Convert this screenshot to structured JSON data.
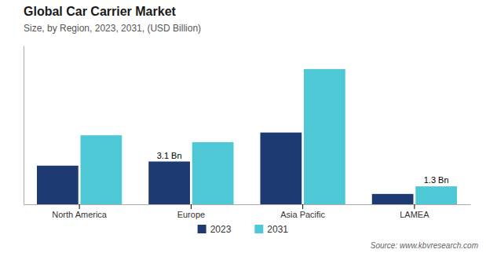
{
  "chart_data": {
    "type": "bar",
    "title": "Global Car Carrier Market",
    "subtitle": "Size, by Region, 2023, 2031, (USD Billion)",
    "categories": [
      "North America",
      "Europe",
      "Asia Pacific",
      "LAMEA"
    ],
    "series": [
      {
        "name": "2023",
        "color": "#1e3a72",
        "values": [
          2.8,
          3.1,
          5.2,
          0.75
        ]
      },
      {
        "name": "2031",
        "color": "#4ec8d4",
        "values": [
          5.0,
          4.5,
          9.8,
          1.3
        ]
      }
    ],
    "annotations": [
      {
        "text": "3.1 Bn",
        "series": "2023",
        "category": "Europe"
      },
      {
        "text": "1.3 Bn",
        "series": "2031",
        "category": "LAMEA"
      }
    ],
    "source": "Source: www.kbvresearch.com",
    "ylim": [
      0,
      11.5
    ],
    "tick_labels": "x",
    "grid": false,
    "legend": "bottom"
  }
}
